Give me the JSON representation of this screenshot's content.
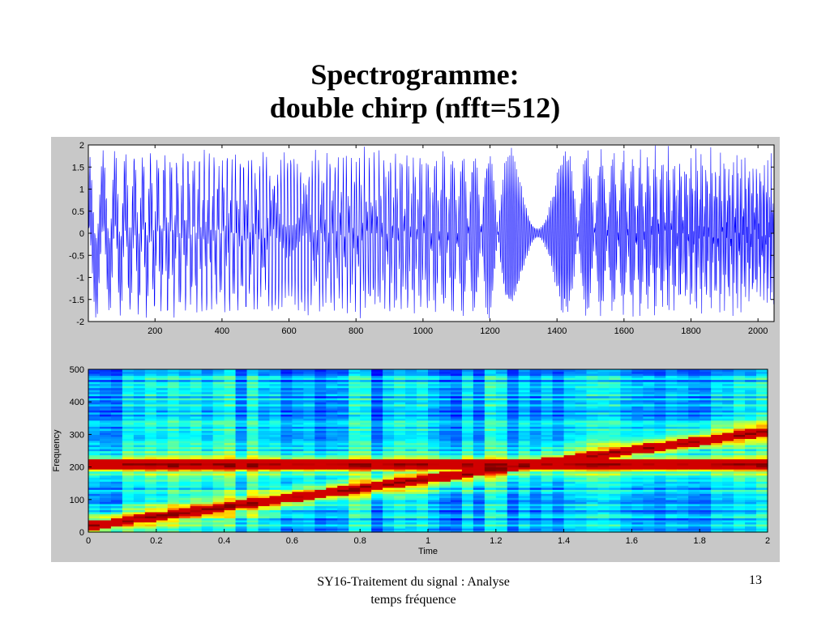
{
  "slide": {
    "title_line1": "Spectrogramme:",
    "title_line2": "double chirp (nfft=512)",
    "footer_line1": "SY16-Traitement du signal : Analyse",
    "footer_line2": "temps fréquence",
    "page_number": "13"
  },
  "chart_data": [
    {
      "type": "line",
      "title": "",
      "xlabel": "",
      "ylabel": "",
      "xlim": [
        1,
        2048
      ],
      "ylim": [
        -2,
        2
      ],
      "xticks": [
        "200",
        "400",
        "600",
        "800",
        "1000",
        "1200",
        "1400",
        "1600",
        "1800",
        "2000"
      ],
      "yticks": [
        "-2",
        "-1.5",
        "-1",
        "-0.5",
        "0",
        "0.5",
        "1",
        "1.5",
        "2"
      ],
      "grid": false,
      "color": "#0000ff",
      "signal": {
        "n_samples": 2048,
        "fs": 1024,
        "components": [
          {
            "type": "tone",
            "frequency_hz": 210,
            "amplitude": 1
          },
          {
            "type": "linear_chirp",
            "f_start_hz": 20,
            "f_end_hz": 310,
            "amplitude": 1
          }
        ]
      }
    },
    {
      "type": "heatmap",
      "title": "",
      "xlabel": "Time",
      "ylabel": "Frequency",
      "xlim": [
        0,
        2
      ],
      "ylim": [
        0,
        500
      ],
      "xticks": [
        "0",
        "0.2",
        "0.4",
        "0.6",
        "0.8",
        "1",
        "1.2",
        "1.4",
        "1.6",
        "1.8",
        "2"
      ],
      "yticks": [
        "0",
        "100",
        "200",
        "300",
        "400",
        "500"
      ],
      "colormap": "jet",
      "ridges": [
        {
          "name": "",
          "type": "constant",
          "frequency_hz": 210
        },
        {
          "name": "",
          "type": "linear",
          "time_s": [
            0,
            2
          ],
          "frequency_hz": [
            20,
            310
          ]
        }
      ]
    }
  ]
}
